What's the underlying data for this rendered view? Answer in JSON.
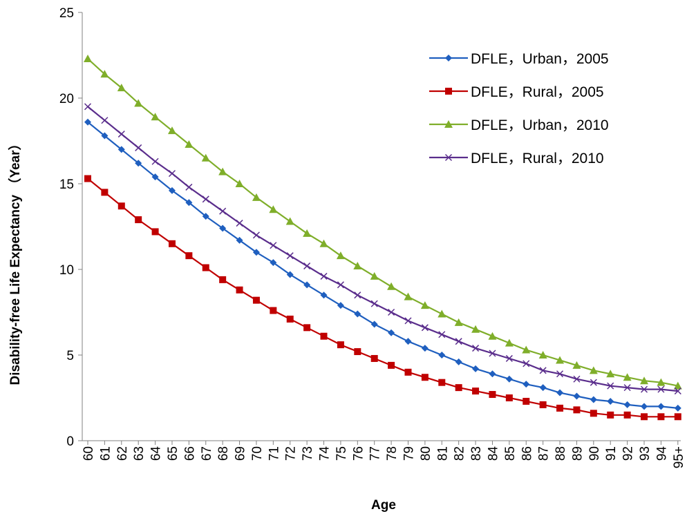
{
  "chart_data": {
    "type": "line",
    "title": "",
    "xlabel": "Age",
    "ylabel": "Disability-free Life Expectancy （Year）",
    "ylim": [
      0,
      25
    ],
    "yticks": [
      0,
      5,
      10,
      15,
      20,
      25
    ],
    "grid": false,
    "legend_position": "top-right",
    "categories": [
      "60",
      "61",
      "62",
      "63",
      "64",
      "65",
      "66",
      "67",
      "68",
      "69",
      "70",
      "71",
      "72",
      "73",
      "74",
      "75",
      "76",
      "77",
      "78",
      "79",
      "80",
      "81",
      "82",
      "83",
      "84",
      "85",
      "86",
      "87",
      "88",
      "89",
      "90",
      "91",
      "92",
      "93",
      "94",
      "95+"
    ],
    "series": [
      {
        "name": "DFLE，Urban，2005",
        "color": "#1f5fbf",
        "marker": "diamond",
        "values": [
          18.6,
          17.8,
          17.0,
          16.2,
          15.4,
          14.6,
          13.9,
          13.1,
          12.4,
          11.7,
          11.0,
          10.4,
          9.7,
          9.1,
          8.5,
          7.9,
          7.4,
          6.8,
          6.3,
          5.8,
          5.4,
          5.0,
          4.6,
          4.2,
          3.9,
          3.6,
          3.3,
          3.1,
          2.8,
          2.6,
          2.4,
          2.3,
          2.1,
          2.0,
          2.0,
          1.9
        ]
      },
      {
        "name": "DFLE，Rural，2005",
        "color": "#c00000",
        "marker": "square",
        "values": [
          15.3,
          14.5,
          13.7,
          12.9,
          12.2,
          11.5,
          10.8,
          10.1,
          9.4,
          8.8,
          8.2,
          7.6,
          7.1,
          6.6,
          6.1,
          5.6,
          5.2,
          4.8,
          4.4,
          4.0,
          3.7,
          3.4,
          3.1,
          2.9,
          2.7,
          2.5,
          2.3,
          2.1,
          1.9,
          1.8,
          1.6,
          1.5,
          1.5,
          1.4,
          1.4,
          1.4
        ]
      },
      {
        "name": "DFLE，Urban，2010",
        "color": "#7fae2a",
        "marker": "triangle",
        "values": [
          22.3,
          21.4,
          20.6,
          19.7,
          18.9,
          18.1,
          17.3,
          16.5,
          15.7,
          15.0,
          14.2,
          13.5,
          12.8,
          12.1,
          11.5,
          10.8,
          10.2,
          9.6,
          9.0,
          8.4,
          7.9,
          7.4,
          6.9,
          6.5,
          6.1,
          5.7,
          5.3,
          5.0,
          4.7,
          4.4,
          4.1,
          3.9,
          3.7,
          3.5,
          3.4,
          3.2
        ]
      },
      {
        "name": "DFLE，Rural，2010",
        "color": "#5a2d8c",
        "marker": "x",
        "values": [
          19.5,
          18.7,
          17.9,
          17.1,
          16.3,
          15.6,
          14.8,
          14.1,
          13.4,
          12.7,
          12.0,
          11.4,
          10.8,
          10.2,
          9.6,
          9.1,
          8.5,
          8.0,
          7.5,
          7.0,
          6.6,
          6.2,
          5.8,
          5.4,
          5.1,
          4.8,
          4.5,
          4.1,
          3.9,
          3.6,
          3.4,
          3.2,
          3.1,
          3.0,
          3.0,
          2.9
        ]
      }
    ]
  }
}
